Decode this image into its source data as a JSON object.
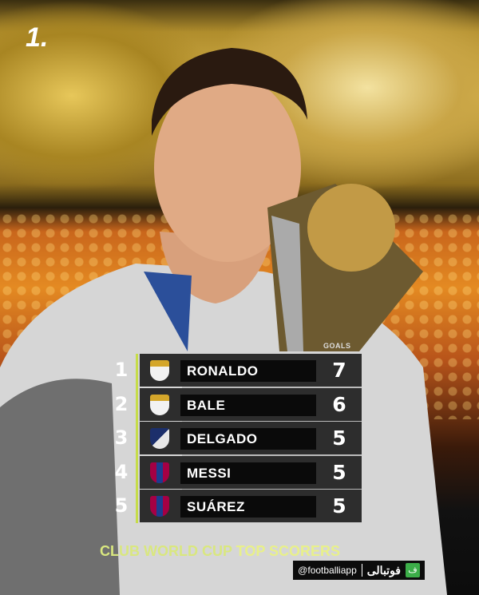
{
  "brand_mark": "1.",
  "goals_header": "GOALS",
  "accent_color": "#c6dc4a",
  "rows": [
    {
      "rank": "1",
      "club": "real-madrid-crest",
      "name": "RONALDO",
      "goals": "7"
    },
    {
      "rank": "2",
      "club": "real-madrid-crest",
      "name": "BALE",
      "goals": "6"
    },
    {
      "rank": "3",
      "club": "monterrey-crest",
      "name": "DELGADO",
      "goals": "5"
    },
    {
      "rank": "4",
      "club": "barcelona-crest",
      "name": "MESSI",
      "goals": "5"
    },
    {
      "rank": "5",
      "club": "barcelona-crest",
      "name": "SUÁREZ",
      "goals": "5"
    }
  ],
  "title": {
    "part1": "CLUB WORLD CUP ",
    "part2": "TOP SCORERS"
  },
  "footer": {
    "handle": "@footballiapp",
    "app_name": "فوتبالی",
    "app_icon": "ف"
  }
}
